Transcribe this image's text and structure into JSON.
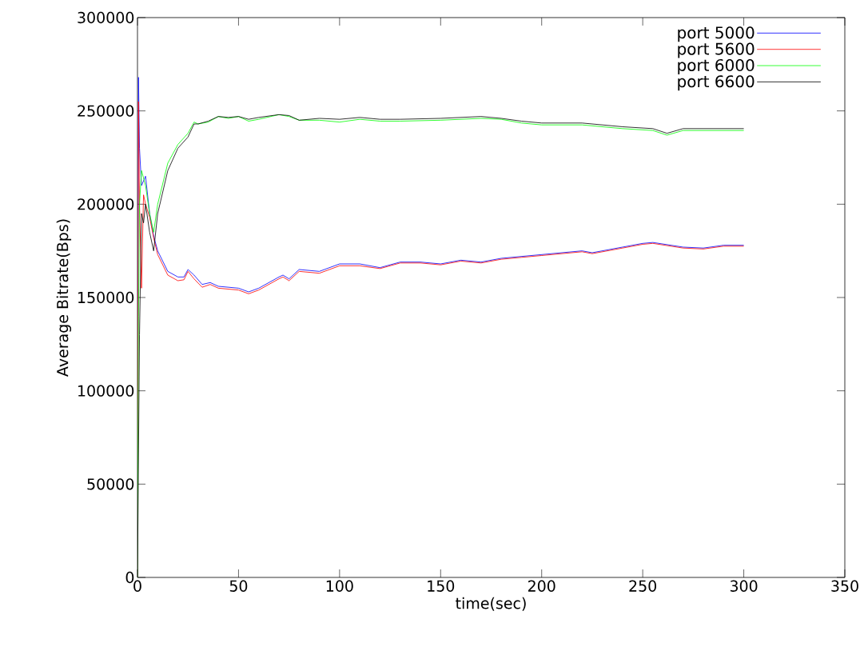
{
  "chart_data": {
    "type": "line",
    "xlabel": "time(sec)",
    "ylabel": "Average Bitrate(Bps)",
    "xlim": [
      0,
      350
    ],
    "ylim": [
      0,
      300000
    ],
    "xticks": [
      0,
      50,
      100,
      150,
      200,
      250,
      300,
      350
    ],
    "yticks": [
      0,
      50000,
      100000,
      150000,
      200000,
      250000,
      300000
    ],
    "grid": false,
    "legend": "top right",
    "marker": "none",
    "line_style": "solid",
    "series": [
      {
        "name": "port 5000",
        "color": "#0000ff",
        "x": [
          0,
          0.5,
          1,
          2,
          4,
          6,
          8,
          10,
          15,
          20,
          23,
          25,
          28,
          32,
          36,
          40,
          50,
          55,
          60,
          70,
          72,
          75,
          80,
          90,
          100,
          110,
          120,
          130,
          140,
          150,
          160,
          170,
          180,
          190,
          200,
          220,
          225,
          240,
          250,
          255,
          270,
          280,
          290,
          300
        ],
        "values": [
          0,
          268000,
          230000,
          210000,
          215000,
          195000,
          183000,
          175000,
          164000,
          161000,
          161000,
          165000,
          162000,
          157000,
          158000,
          156000,
          155000,
          153000,
          155000,
          161000,
          162000,
          160000,
          165000,
          164000,
          168000,
          168000,
          166000,
          169000,
          169000,
          168000,
          170000,
          169000,
          171000,
          172000,
          173000,
          175000,
          174000,
          177000,
          179000,
          179500,
          177000,
          176500,
          178000,
          178000
        ]
      },
      {
        "name": "port 5600",
        "color": "#ff0000",
        "x": [
          0,
          0.5,
          1,
          2,
          3,
          4,
          6,
          8,
          10,
          15,
          20,
          23,
          25,
          28,
          32,
          36,
          40,
          50,
          55,
          60,
          70,
          72,
          75,
          80,
          90,
          100,
          110,
          120,
          130,
          140,
          150,
          160,
          170,
          180,
          190,
          200,
          220,
          225,
          240,
          250,
          255,
          270,
          280,
          290,
          300
        ],
        "values": [
          0,
          255000,
          200000,
          155000,
          205000,
          200000,
          193000,
          182000,
          173000,
          162000,
          159000,
          159500,
          164000,
          160000,
          155500,
          157000,
          155000,
          154000,
          152000,
          154000,
          160000,
          161000,
          159000,
          164000,
          163000,
          167000,
          167000,
          165500,
          168500,
          168500,
          167500,
          169500,
          168500,
          170500,
          171500,
          172500,
          174500,
          173500,
          176500,
          178500,
          179000,
          176500,
          176000,
          177500,
          177500
        ]
      },
      {
        "name": "port 6000",
        "color": "#00ff00",
        "x": [
          0,
          0.5,
          1,
          2,
          4,
          6,
          8,
          10,
          15,
          20,
          25,
          28,
          30,
          35,
          40,
          45,
          50,
          55,
          60,
          70,
          75,
          80,
          90,
          100,
          110,
          120,
          130,
          150,
          170,
          180,
          190,
          200,
          220,
          240,
          255,
          262,
          270,
          300
        ],
        "values": [
          0,
          140000,
          200000,
          218000,
          210000,
          195000,
          185000,
          200000,
          222000,
          232000,
          238000,
          244000,
          243000,
          244000,
          247000,
          246000,
          247000,
          244500,
          245500,
          248000,
          247000,
          245000,
          245000,
          244000,
          245500,
          244500,
          244500,
          245000,
          246000,
          245500,
          243500,
          242500,
          242500,
          240500,
          239500,
          237000,
          239500,
          239500
        ]
      },
      {
        "name": "port 6600",
        "color": "#000000",
        "x": [
          0,
          1,
          2,
          3,
          4,
          6,
          8,
          10,
          15,
          20,
          25,
          28,
          30,
          35,
          40,
          45,
          50,
          55,
          60,
          70,
          75,
          80,
          90,
          100,
          110,
          120,
          130,
          150,
          170,
          180,
          190,
          200,
          220,
          240,
          255,
          262,
          270,
          300
        ],
        "values": [
          0,
          130000,
          195000,
          190000,
          200000,
          185000,
          175000,
          195000,
          218000,
          230000,
          236000,
          243000,
          243000,
          244500,
          247000,
          246500,
          247000,
          245500,
          246500,
          248000,
          247500,
          245000,
          246000,
          245500,
          246500,
          245500,
          245500,
          246000,
          247000,
          246000,
          244500,
          243500,
          243500,
          241500,
          240500,
          238000,
          240500,
          240500
        ]
      }
    ]
  }
}
